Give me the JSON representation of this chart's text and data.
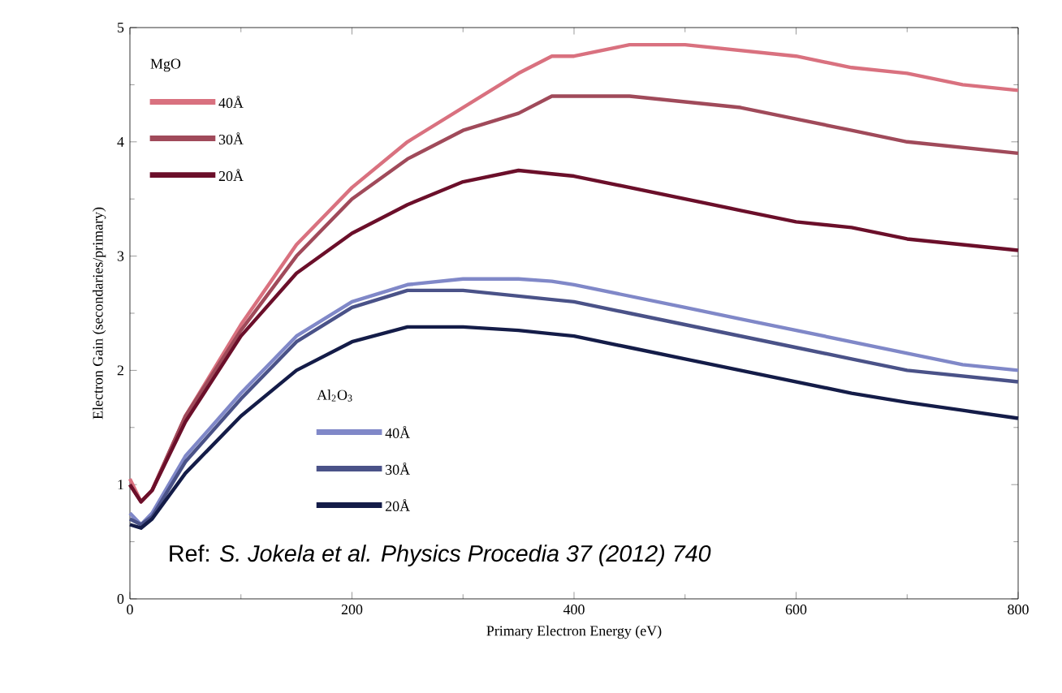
{
  "chart_data": {
    "type": "line",
    "xlabel": "Primary Electron Energy (eV)",
    "ylabel": "Electron Gain (secondaries/primary)",
    "xlim": [
      0,
      800
    ],
    "ylim": [
      0,
      5
    ],
    "xticks": [
      0,
      200,
      400,
      600,
      800
    ],
    "yticks": [
      0,
      1,
      2,
      3,
      4,
      5
    ],
    "x": [
      0,
      10,
      20,
      50,
      100,
      150,
      200,
      250,
      300,
      350,
      380,
      400,
      450,
      500,
      550,
      600,
      650,
      700,
      750,
      800
    ],
    "series": [
      {
        "name": "40Å",
        "color": "#d9717f",
        "values": [
          1.05,
          0.85,
          0.95,
          1.6,
          2.4,
          3.1,
          3.6,
          4.0,
          4.3,
          4.6,
          4.75,
          4.75,
          4.85,
          4.85,
          4.8,
          4.75,
          4.65,
          4.6,
          4.5,
          4.45
        ]
      },
      {
        "name": "30Å",
        "color": "#a04a5a",
        "values": [
          1.0,
          0.85,
          0.95,
          1.6,
          2.35,
          3.0,
          3.5,
          3.85,
          4.1,
          4.25,
          4.4,
          4.4,
          4.4,
          4.35,
          4.3,
          4.2,
          4.1,
          4.0,
          3.95,
          3.9
        ]
      },
      {
        "name": "20Å",
        "color": "#6b0f2a",
        "values": [
          1.0,
          0.85,
          0.95,
          1.55,
          2.3,
          2.85,
          3.2,
          3.45,
          3.65,
          3.75,
          3.72,
          3.7,
          3.6,
          3.5,
          3.4,
          3.3,
          3.25,
          3.15,
          3.1,
          3.05
        ]
      },
      {
        "name": "40Å",
        "color": "#8088c8",
        "values": [
          0.75,
          0.65,
          0.75,
          1.25,
          1.8,
          2.3,
          2.6,
          2.75,
          2.8,
          2.8,
          2.78,
          2.75,
          2.65,
          2.55,
          2.45,
          2.35,
          2.25,
          2.15,
          2.05,
          2.0
        ]
      },
      {
        "name": "30Å",
        "color": "#4a5288",
        "values": [
          0.7,
          0.65,
          0.72,
          1.2,
          1.75,
          2.25,
          2.55,
          2.7,
          2.7,
          2.65,
          2.62,
          2.6,
          2.5,
          2.4,
          2.3,
          2.2,
          2.1,
          2.0,
          1.95,
          1.9
        ]
      },
      {
        "name": "20Å",
        "color": "#141c48",
        "values": [
          0.65,
          0.62,
          0.7,
          1.1,
          1.6,
          2.0,
          2.25,
          2.38,
          2.38,
          2.35,
          2.32,
          2.3,
          2.2,
          2.1,
          2.0,
          1.9,
          1.8,
          1.72,
          1.65,
          1.58
        ]
      }
    ],
    "legend": "top left",
    "annotations": [
      "MgO",
      "Al$_{2}$O$_{3}$",
      "Ref: *S. Jokela et al. Physics Procedia 37 (2012) 740*"
    ]
  }
}
